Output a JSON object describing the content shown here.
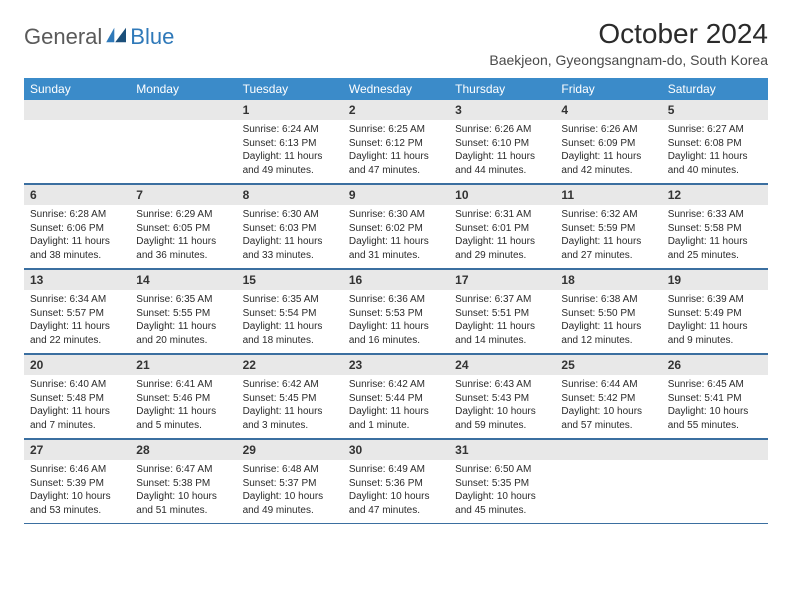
{
  "logo": {
    "general": "General",
    "blue": "Blue"
  },
  "title": "October 2024",
  "location": "Baekjeon, Gyeongsangnam-do, South Korea",
  "colors": {
    "header_bg": "#3b8bc9",
    "header_text": "#ffffff",
    "daynum_bg": "#e8e8e8",
    "row_border": "#3b6fa0",
    "logo_gray": "#5a5a5a",
    "logo_blue": "#2f79b9",
    "text": "#2b2b2b"
  },
  "weekdays": [
    "Sunday",
    "Monday",
    "Tuesday",
    "Wednesday",
    "Thursday",
    "Friday",
    "Saturday"
  ],
  "weeks": [
    [
      null,
      null,
      {
        "n": "1",
        "sr": "6:24 AM",
        "ss": "6:13 PM",
        "dl": "11 hours and 49 minutes."
      },
      {
        "n": "2",
        "sr": "6:25 AM",
        "ss": "6:12 PM",
        "dl": "11 hours and 47 minutes."
      },
      {
        "n": "3",
        "sr": "6:26 AM",
        "ss": "6:10 PM",
        "dl": "11 hours and 44 minutes."
      },
      {
        "n": "4",
        "sr": "6:26 AM",
        "ss": "6:09 PM",
        "dl": "11 hours and 42 minutes."
      },
      {
        "n": "5",
        "sr": "6:27 AM",
        "ss": "6:08 PM",
        "dl": "11 hours and 40 minutes."
      }
    ],
    [
      {
        "n": "6",
        "sr": "6:28 AM",
        "ss": "6:06 PM",
        "dl": "11 hours and 38 minutes."
      },
      {
        "n": "7",
        "sr": "6:29 AM",
        "ss": "6:05 PM",
        "dl": "11 hours and 36 minutes."
      },
      {
        "n": "8",
        "sr": "6:30 AM",
        "ss": "6:03 PM",
        "dl": "11 hours and 33 minutes."
      },
      {
        "n": "9",
        "sr": "6:30 AM",
        "ss": "6:02 PM",
        "dl": "11 hours and 31 minutes."
      },
      {
        "n": "10",
        "sr": "6:31 AM",
        "ss": "6:01 PM",
        "dl": "11 hours and 29 minutes."
      },
      {
        "n": "11",
        "sr": "6:32 AM",
        "ss": "5:59 PM",
        "dl": "11 hours and 27 minutes."
      },
      {
        "n": "12",
        "sr": "6:33 AM",
        "ss": "5:58 PM",
        "dl": "11 hours and 25 minutes."
      }
    ],
    [
      {
        "n": "13",
        "sr": "6:34 AM",
        "ss": "5:57 PM",
        "dl": "11 hours and 22 minutes."
      },
      {
        "n": "14",
        "sr": "6:35 AM",
        "ss": "5:55 PM",
        "dl": "11 hours and 20 minutes."
      },
      {
        "n": "15",
        "sr": "6:35 AM",
        "ss": "5:54 PM",
        "dl": "11 hours and 18 minutes."
      },
      {
        "n": "16",
        "sr": "6:36 AM",
        "ss": "5:53 PM",
        "dl": "11 hours and 16 minutes."
      },
      {
        "n": "17",
        "sr": "6:37 AM",
        "ss": "5:51 PM",
        "dl": "11 hours and 14 minutes."
      },
      {
        "n": "18",
        "sr": "6:38 AM",
        "ss": "5:50 PM",
        "dl": "11 hours and 12 minutes."
      },
      {
        "n": "19",
        "sr": "6:39 AM",
        "ss": "5:49 PM",
        "dl": "11 hours and 9 minutes."
      }
    ],
    [
      {
        "n": "20",
        "sr": "6:40 AM",
        "ss": "5:48 PM",
        "dl": "11 hours and 7 minutes."
      },
      {
        "n": "21",
        "sr": "6:41 AM",
        "ss": "5:46 PM",
        "dl": "11 hours and 5 minutes."
      },
      {
        "n": "22",
        "sr": "6:42 AM",
        "ss": "5:45 PM",
        "dl": "11 hours and 3 minutes."
      },
      {
        "n": "23",
        "sr": "6:42 AM",
        "ss": "5:44 PM",
        "dl": "11 hours and 1 minute."
      },
      {
        "n": "24",
        "sr": "6:43 AM",
        "ss": "5:43 PM",
        "dl": "10 hours and 59 minutes."
      },
      {
        "n": "25",
        "sr": "6:44 AM",
        "ss": "5:42 PM",
        "dl": "10 hours and 57 minutes."
      },
      {
        "n": "26",
        "sr": "6:45 AM",
        "ss": "5:41 PM",
        "dl": "10 hours and 55 minutes."
      }
    ],
    [
      {
        "n": "27",
        "sr": "6:46 AM",
        "ss": "5:39 PM",
        "dl": "10 hours and 53 minutes."
      },
      {
        "n": "28",
        "sr": "6:47 AM",
        "ss": "5:38 PM",
        "dl": "10 hours and 51 minutes."
      },
      {
        "n": "29",
        "sr": "6:48 AM",
        "ss": "5:37 PM",
        "dl": "10 hours and 49 minutes."
      },
      {
        "n": "30",
        "sr": "6:49 AM",
        "ss": "5:36 PM",
        "dl": "10 hours and 47 minutes."
      },
      {
        "n": "31",
        "sr": "6:50 AM",
        "ss": "5:35 PM",
        "dl": "10 hours and 45 minutes."
      },
      null,
      null
    ]
  ],
  "labels": {
    "sunrise": "Sunrise:",
    "sunset": "Sunset:",
    "daylight": "Daylight:"
  }
}
